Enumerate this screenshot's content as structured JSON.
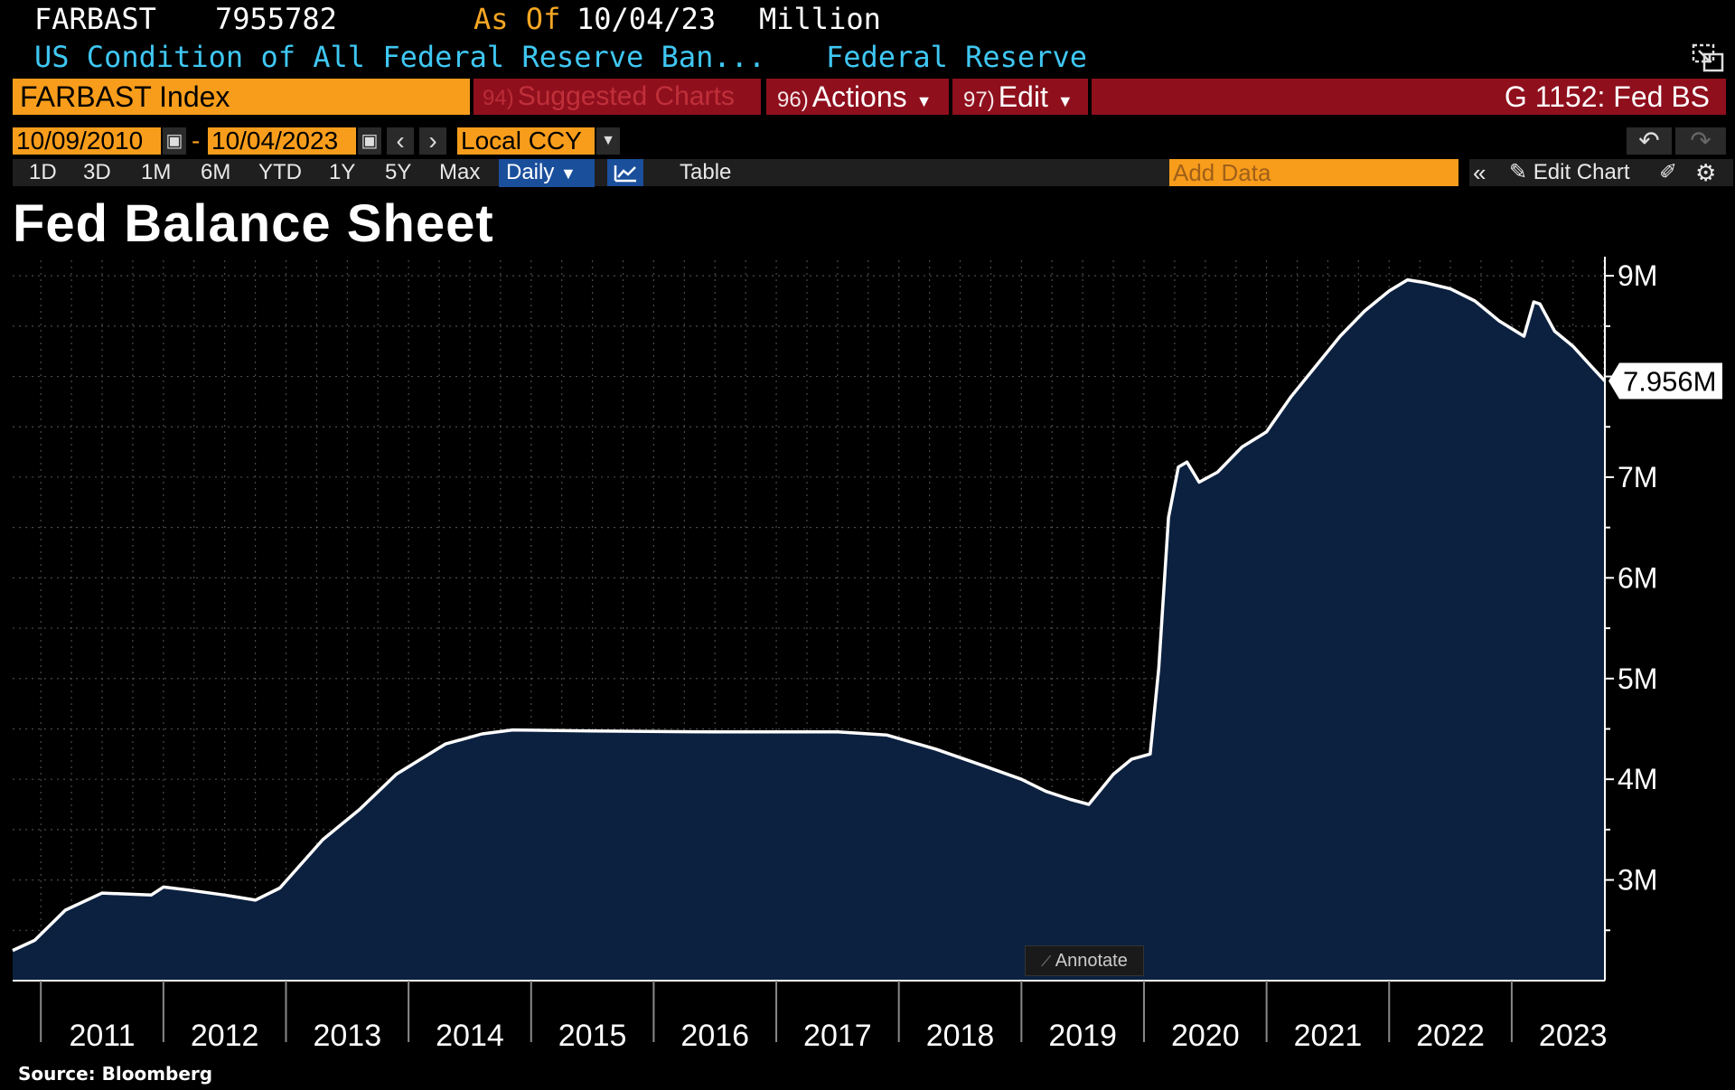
{
  "header": {
    "ticker": "FARBAST",
    "value": "7955782",
    "as_of_label": "As Of",
    "as_of_date": "10/04/23",
    "units": "Million",
    "description": "US Condition of All Federal Reserve Ban...",
    "source_name": "Federal Reserve"
  },
  "toolbar": {
    "index_field": "FARBAST Index",
    "suggested_num": "94)",
    "suggested_label": "Suggested Charts",
    "actions_num": "96)",
    "actions_label": "Actions",
    "edit_num": "97)",
    "edit_label": "Edit",
    "graph_title": "G 1152: Fed BS"
  },
  "date_range": {
    "start": "10/09/2010",
    "separator": "-",
    "end": "10/04/2023",
    "currency": "Local CCY"
  },
  "periods": [
    "1D",
    "3D",
    "1M",
    "6M",
    "YTD",
    "1Y",
    "5Y",
    "Max"
  ],
  "frequency": "Daily",
  "table_label": "Table",
  "add_data_placeholder": "Add Data",
  "edit_chart_label": "Edit Chart",
  "annotate_label": "Annotate",
  "source": "Source: Bloomberg",
  "icons": {
    "window": "popout-icon",
    "undo": "undo-icon",
    "redo": "redo-icon",
    "line_chart": "line-chart-icon",
    "collapse": "double-chevron-left-icon",
    "pencil": "pencil-icon",
    "settings": "gear-icon"
  },
  "colors": {
    "background": "#000000",
    "amber": "#f89d1b",
    "red_bar": "#8f0f1d",
    "cyan_text": "#3fc7f2",
    "area_fill": "#0c2140",
    "line": "#ffffff",
    "selected_blue": "#1a4f9c"
  },
  "chart_data": {
    "type": "area",
    "title": "Fed Balance Sheet",
    "xlabel": "",
    "ylabel": "",
    "xlim": [
      2010.77,
      2023.76
    ],
    "ylim": [
      2.0,
      9.1
    ],
    "y_unit": "M",
    "y_ticks": [
      3,
      4,
      5,
      6,
      7,
      9
    ],
    "y_tick_labels": [
      "3M",
      "4M",
      "5M",
      "6M",
      "7M",
      "9M"
    ],
    "x_ticks": [
      2011,
      2012,
      2013,
      2014,
      2015,
      2016,
      2017,
      2018,
      2019,
      2020,
      2021,
      2022,
      2023
    ],
    "x_tick_labels": [
      "2011",
      "2012",
      "2013",
      "2014",
      "2015",
      "2016",
      "2017",
      "2018",
      "2019",
      "2020",
      "2021",
      "2022",
      "2023"
    ],
    "last_value_label": "7.956M",
    "last_value": 7.956,
    "grid": true,
    "legend": "none",
    "series": [
      {
        "x": [
          2010.77,
          2010.95,
          2011.2,
          2011.5,
          2011.9,
          2012.0,
          2012.2,
          2012.5,
          2012.75,
          2012.95,
          2013.3,
          2013.6,
          2013.9,
          2014.3,
          2014.6,
          2014.85,
          2015.5,
          2016.5,
          2017.5,
          2017.9,
          2018.3,
          2018.7,
          2019.0,
          2019.2,
          2019.4,
          2019.55,
          2019.75,
          2019.9,
          2020.05,
          2020.12,
          2020.2,
          2020.28,
          2020.35,
          2020.45,
          2020.6,
          2020.8,
          2021.0,
          2021.2,
          2021.4,
          2021.6,
          2021.8,
          2022.0,
          2022.15,
          2022.3,
          2022.5,
          2022.7,
          2022.9,
          2023.1,
          2023.18,
          2023.23,
          2023.35,
          2023.5,
          2023.65,
          2023.76
        ],
        "values": [
          2.3,
          2.4,
          2.7,
          2.87,
          2.85,
          2.93,
          2.9,
          2.85,
          2.8,
          2.92,
          3.4,
          3.7,
          4.05,
          4.35,
          4.45,
          4.49,
          4.48,
          4.47,
          4.47,
          4.44,
          4.3,
          4.13,
          4.0,
          3.88,
          3.8,
          3.75,
          4.05,
          4.2,
          4.25,
          5.1,
          6.6,
          7.1,
          7.15,
          6.95,
          7.05,
          7.3,
          7.45,
          7.8,
          8.1,
          8.4,
          8.65,
          8.85,
          8.96,
          8.93,
          8.87,
          8.75,
          8.55,
          8.4,
          8.74,
          8.72,
          8.45,
          8.3,
          8.1,
          7.956
        ]
      }
    ]
  }
}
